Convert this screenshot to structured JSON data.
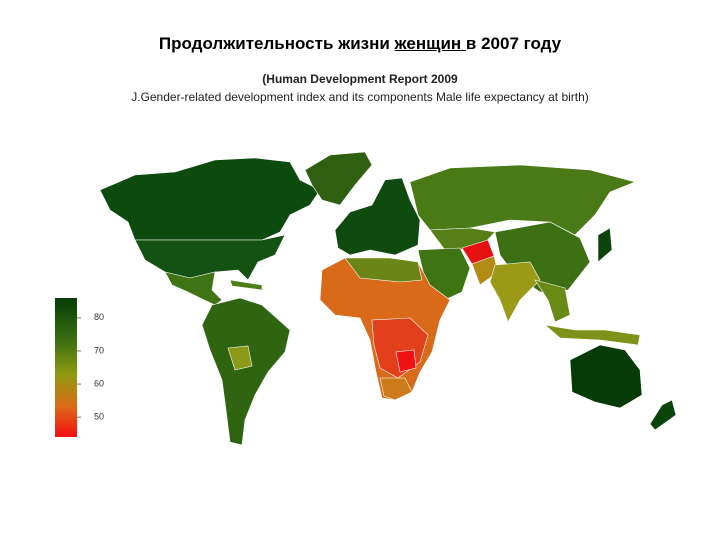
{
  "header": {
    "title_start": "Продолжительность жизни",
    "title_underlined": "женщин",
    "title_end": "в 2007 году",
    "subtitle": "(Human Development Report 2009",
    "description": "J.Gender-related development index and its components Male life expectancy at birth)"
  },
  "legend": {
    "range": [
      44,
      86
    ],
    "ticks": [
      50,
      60,
      70,
      80
    ]
  }
}
